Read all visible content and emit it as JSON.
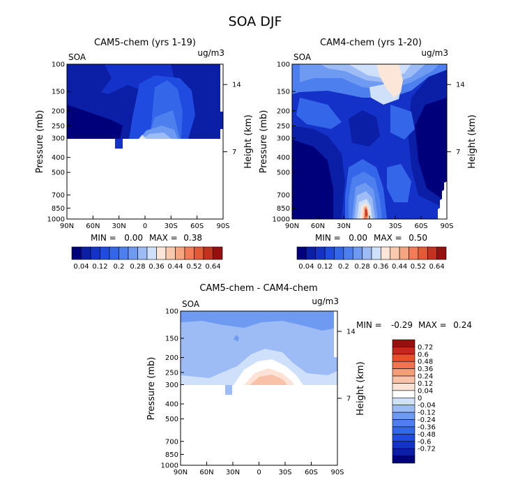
{
  "figure_title": "SOA DJF",
  "colors": {
    "seq": [
      "#00007a",
      "#0b1ea6",
      "#1432c8",
      "#1f4be0",
      "#3366e8",
      "#4d80ee",
      "#6f9af2",
      "#9dbcf6",
      "#cfe0fa",
      "#fbe6d8",
      "#f9c9ad",
      "#f5a57f",
      "#f27c55",
      "#e35a36",
      "#c4321e",
      "#961010"
    ],
    "div": [
      "#00007a",
      "#0b1ea6",
      "#1432c8",
      "#1f4be0",
      "#3366e8",
      "#4d80ee",
      "#6f9af2",
      "#9dbcf6",
      "#cfe0fa",
      "#ffffff",
      "#fde3d6",
      "#f9c2a8",
      "#f59c79",
      "#f27350",
      "#e6502f",
      "#c4281a",
      "#961010"
    ]
  },
  "chart_data": [
    {
      "type": "contour",
      "title": "CAM5-chem (yrs 1-19)",
      "var_label": "SOA",
      "units": "ug/m3",
      "ylabel": "Pressure (mb)",
      "y2label": "Height (km)",
      "x_ticks": [
        "90N",
        "60N",
        "30N",
        "0",
        "30S",
        "60S",
        "90S"
      ],
      "y_ticks": [
        100,
        150,
        200,
        250,
        300,
        400,
        500,
        700,
        850,
        1000
      ],
      "y2_ticks": [
        14,
        7
      ],
      "ylim": [
        1000,
        100
      ],
      "min_label": "MIN =",
      "min": "0.00",
      "max_label": "MAX =",
      "max": "0.38",
      "colorbar_labels": [
        "0.04",
        "0.12",
        "0.2",
        "0.28",
        "0.36",
        "0.44",
        "0.52",
        "0.64"
      ]
    },
    {
      "type": "contour",
      "title": "CAM4-chem (yrs 1-20)",
      "var_label": "SOA",
      "units": "ug/m3",
      "ylabel": "Pressure (mb)",
      "y2label": "Height (km)",
      "x_ticks": [
        "90N",
        "60N",
        "30N",
        "0",
        "30S",
        "60S",
        "90S"
      ],
      "y_ticks": [
        100,
        150,
        200,
        250,
        300,
        400,
        500,
        700,
        850,
        1000
      ],
      "y2_ticks": [
        14,
        7
      ],
      "ylim": [
        1000,
        100
      ],
      "min_label": "MIN =",
      "min": "0.00",
      "max_label": "MAX =",
      "max": "0.50",
      "colorbar_labels": [
        "0.04",
        "0.12",
        "0.2",
        "0.28",
        "0.36",
        "0.44",
        "0.52",
        "0.64"
      ]
    },
    {
      "type": "contour",
      "title": "CAM5-chem - CAM4-chem",
      "var_label": "SOA",
      "units": "ug/m3",
      "ylabel": "Pressure (mb)",
      "y2label": "Height (km)",
      "x_ticks": [
        "90N",
        "60N",
        "30N",
        "0",
        "30S",
        "60S",
        "90S"
      ],
      "y_ticks": [
        100,
        150,
        200,
        250,
        300,
        400,
        500,
        700,
        850,
        1000
      ],
      "y2_ticks": [
        14,
        7
      ],
      "ylim": [
        1000,
        100
      ],
      "min_label": "MIN =",
      "min": "-0.29",
      "max_label": "MAX =",
      "max": "0.24",
      "colorbar_labels": [
        "0.72",
        "0.6",
        "0.48",
        "0.36",
        "0.24",
        "0.12",
        "0.04",
        "0",
        "-0.04",
        "-0.12",
        "-0.24",
        "-0.36",
        "-0.48",
        "-0.6",
        "-0.72"
      ]
    }
  ]
}
